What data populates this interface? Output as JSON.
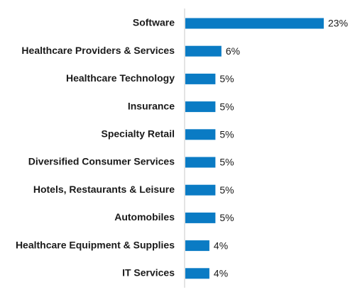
{
  "chart_data": {
    "type": "bar",
    "orientation": "horizontal",
    "categories": [
      "Software",
      "Healthcare Providers & Services",
      "Healthcare Technology",
      "Insurance",
      "Specialty Retail",
      "Diversified Consumer Services",
      "Hotels, Restaurants & Leisure",
      "Automobiles",
      "Healthcare Equipment & Supplies",
      "IT Services"
    ],
    "values": [
      23,
      6,
      5,
      5,
      5,
      5,
      5,
      5,
      4,
      4
    ],
    "value_labels": [
      "23%",
      "6%",
      "5%",
      "5%",
      "5%",
      "5%",
      "5%",
      "5%",
      "4%",
      "4%"
    ],
    "title": "",
    "xlabel": "",
    "ylabel": "",
    "xlim": [
      0,
      23
    ],
    "grid": false,
    "legend": "none",
    "bar_color": "#0a7bc4",
    "axis_color": "#c8c8c8"
  }
}
